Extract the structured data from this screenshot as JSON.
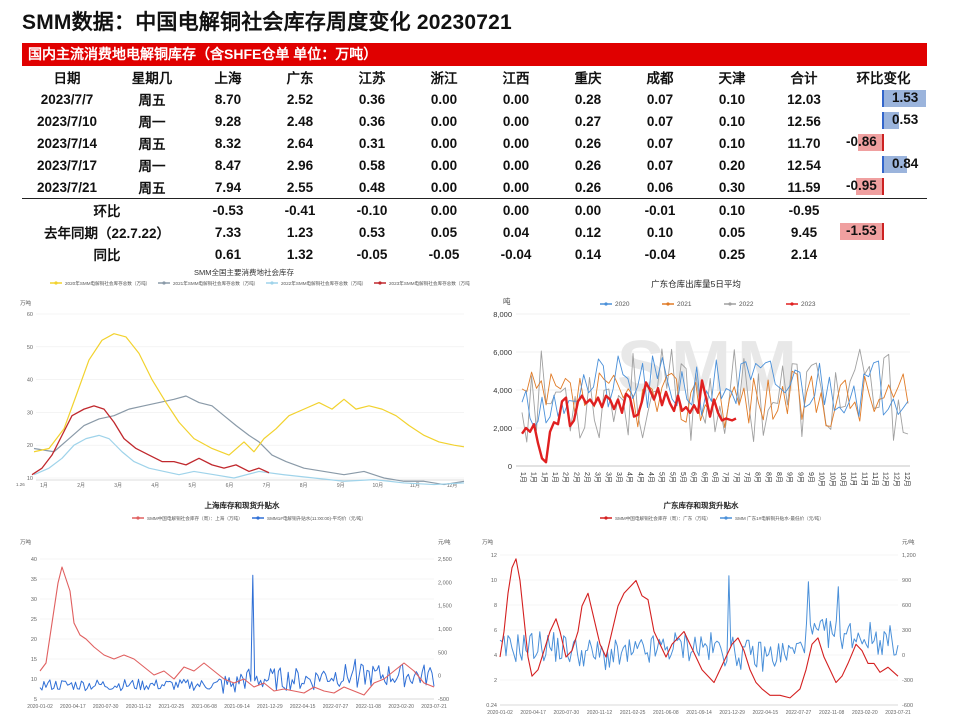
{
  "title": "SMM数据：中国电解铜社会库存周度变化 20230721",
  "table": {
    "subtitle": "国内主流消费地电解铜库存（含SHFE仓单 单位：万吨）",
    "columns": [
      "日期",
      "星期几",
      "上海",
      "广东",
      "江苏",
      "浙江",
      "江西",
      "重庆",
      "成都",
      "天津",
      "合计",
      "环比变化"
    ],
    "rows": [
      {
        "date": "2023/7/7",
        "weekday": "周五",
        "values": [
          "8.70",
          "2.52",
          "0.36",
          "0.00",
          "0.00",
          "0.28",
          "0.07",
          "0.10",
          "12.03"
        ],
        "change": "1.53",
        "change_num": 1.53
      },
      {
        "date": "2023/7/10",
        "weekday": "周一",
        "values": [
          "9.28",
          "2.48",
          "0.36",
          "0.00",
          "0.00",
          "0.27",
          "0.07",
          "0.10",
          "12.56"
        ],
        "change": "0.53",
        "change_num": 0.53
      },
      {
        "date": "2023/7/14",
        "weekday": "周五",
        "values": [
          "8.32",
          "2.64",
          "0.31",
          "0.00",
          "0.00",
          "0.26",
          "0.07",
          "0.10",
          "11.70"
        ],
        "change": "-0.86",
        "change_num": -0.86
      },
      {
        "date": "2023/7/17",
        "weekday": "周一",
        "values": [
          "8.47",
          "2.96",
          "0.58",
          "0.00",
          "0.00",
          "0.26",
          "0.07",
          "0.20",
          "12.54"
        ],
        "change": "0.84",
        "change_num": 0.84
      },
      {
        "date": "2023/7/21",
        "weekday": "周五",
        "values": [
          "7.94",
          "2.55",
          "0.48",
          "0.00",
          "0.00",
          "0.26",
          "0.06",
          "0.30",
          "11.59"
        ],
        "change": "-0.95",
        "change_num": -0.95
      }
    ],
    "summary": [
      {
        "label": "环比",
        "values": [
          "-0.53",
          "-0.41",
          "-0.10",
          "0.00",
          "0.00",
          "0.00",
          "-0.01",
          "0.10",
          "-0.95"
        ],
        "change": "",
        "change_num": null
      },
      {
        "label": "去年同期（22.7.22）",
        "values": [
          "7.33",
          "1.23",
          "0.53",
          "0.05",
          "0.04",
          "0.12",
          "0.10",
          "0.05",
          "9.45"
        ],
        "change": "-1.53",
        "change_num": -1.53
      },
      {
        "label": "同比",
        "values": [
          "0.61",
          "1.32",
          "-0.05",
          "-0.05",
          "-0.04",
          "0.14",
          "-0.04",
          "0.25",
          "2.14"
        ],
        "change": "",
        "change_num": null
      }
    ]
  },
  "chart_data": [
    {
      "type": "line",
      "title": "SMM全国主要消费地社会库存",
      "yunit": "万吨",
      "yticks": [
        "60",
        "50",
        "40",
        "30",
        "20",
        "10"
      ],
      "xticks": [
        "1月",
        "2月",
        "3月",
        "4月",
        "5月",
        "6月",
        "7月",
        "8月",
        "9月",
        "10月",
        "11月",
        "12月"
      ],
      "start_label": "1.26",
      "series": [
        {
          "name": "2020年SMM电解铜社会库存总数（万吨）",
          "color": "#f2d22e"
        },
        {
          "name": "2021年SMM电解铜社会库存总数（万吨）",
          "color": "#8a9aa8"
        },
        {
          "name": "2022年SMM电解铜社会库存总数（万吨）",
          "color": "#9fd3ea"
        },
        {
          "name": "2023年SMM电解铜社会库存总数（万吨）",
          "color": "#c0282d"
        }
      ]
    },
    {
      "type": "line",
      "title": "广东仓库出库量5日平均",
      "yunit": "吨",
      "yticks": [
        "8,000",
        "6,000",
        "4,000",
        "2,000",
        "0"
      ],
      "xticks": [
        "1月",
        "1月",
        "1月",
        "1月",
        "2月",
        "2月",
        "2月",
        "3月",
        "3月",
        "3月",
        "4月",
        "4月",
        "4月",
        "5月",
        "5月",
        "5月",
        "6月",
        "6月",
        "6月",
        "7月",
        "7月",
        "7月",
        "8月",
        "8月",
        "8月",
        "9月",
        "9月",
        "9月",
        "10月",
        "10月",
        "10月",
        "11月",
        "11月",
        "11月",
        "12月",
        "12月",
        "12月"
      ],
      "watermark": "SMM",
      "series": [
        {
          "name": "2020",
          "color": "#4a90d9"
        },
        {
          "name": "2021",
          "color": "#e07b27"
        },
        {
          "name": "2022",
          "color": "#a0a0a0"
        },
        {
          "name": "2023",
          "color": "#e02020"
        }
      ]
    },
    {
      "type": "line",
      "title": "上海库存和现货升贴水",
      "yunit_left": "万吨",
      "yunit_right": "元/吨",
      "yticks_left": [
        "40",
        "35",
        "30",
        "25",
        "20",
        "15",
        "10",
        "5"
      ],
      "yticks_right": [
        "2,500",
        "2,000",
        "1,500",
        "1,000",
        "500",
        "0",
        "-500"
      ],
      "xticks": [
        "2020-01-02",
        "2020-04-17",
        "2020-07-30",
        "2020-11-12",
        "2021-02-25",
        "2021-06-08",
        "2021-09-14",
        "2021-12-29",
        "2022-04-15",
        "2022-07-27",
        "2022-11-08",
        "2023-02-20",
        "2023-07-21"
      ],
      "series": [
        {
          "name": "SMM中国电解铜社会库存（周）：上海（万吨）",
          "color": "#e06060"
        },
        {
          "name": "SMM1#电解铜升贴水(11:00:00)-平均价（元/吨）",
          "color": "#2f6fd6"
        }
      ]
    },
    {
      "type": "line",
      "title": "广东库存和现货升贴水",
      "yunit_left": "万吨",
      "yunit_right": "元/吨",
      "yticks_left": [
        "12",
        "10",
        "8",
        "6",
        "4",
        "2",
        "0.24"
      ],
      "yticks_right": [
        "1,200",
        "900",
        "600",
        "300",
        "0",
        "-300",
        "-600"
      ],
      "xticks": [
        "2020-01-02",
        "2020-04-17",
        "2020-07-30",
        "2020-11-12",
        "2021-02-25",
        "2021-06-08",
        "2021-09-14",
        "2021-12-29",
        "2022-04-15",
        "2022-07-27",
        "2022-11-08",
        "2023-02-20",
        "2023-07-21"
      ],
      "series": [
        {
          "name": "SMM中国电解铜社会库存（周）：广东（万吨）",
          "color": "#d42020"
        },
        {
          "name": "SMM 广东1#电解铜升贴水-最低价（元/吨）",
          "color": "#4a90d9"
        }
      ]
    }
  ]
}
